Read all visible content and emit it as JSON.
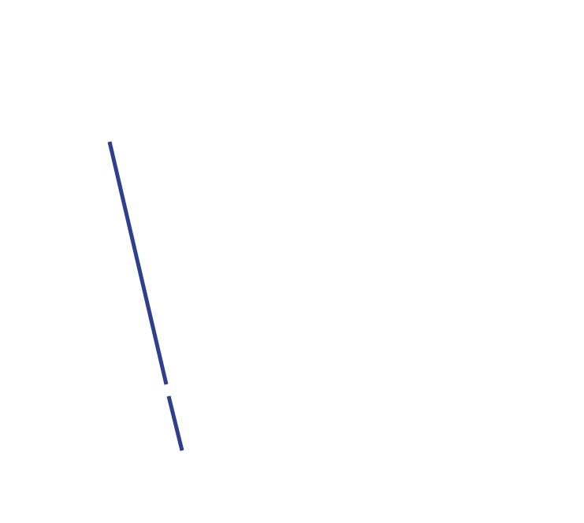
{
  "background_color": "#ffffff",
  "stroke": {
    "color": "#2e3f8f",
    "segment_count": 2
  }
}
